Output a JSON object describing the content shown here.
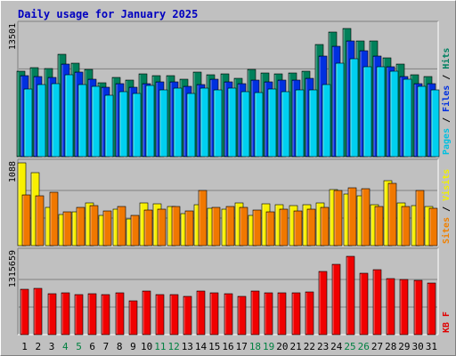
{
  "chart_data": {
    "type": "bar",
    "title": "Daily usage for January 2025",
    "categories": [
      "1",
      "2",
      "3",
      "4",
      "5",
      "6",
      "7",
      "8",
      "9",
      "10",
      "11",
      "12",
      "13",
      "14",
      "15",
      "16",
      "17",
      "18",
      "19",
      "20",
      "21",
      "22",
      "23",
      "24",
      "25",
      "26",
      "27",
      "28",
      "29",
      "30",
      "31"
    ],
    "weekend_days": [
      "4",
      "5",
      "11",
      "12",
      "18",
      "19",
      "25",
      "26"
    ],
    "panels": [
      {
        "id": "hits-files-pages",
        "ylabel_parts": [
          {
            "text": "Pages",
            "color": "#00c0e0"
          },
          {
            "text": " / ",
            "color": "#000000"
          },
          {
            "text": "Files",
            "color": "#0030e0"
          },
          {
            "text": " / ",
            "color": "#000000"
          },
          {
            "text": "Hits",
            "color": "#008060"
          }
        ],
        "max_label": "13501",
        "ylim": [
          0,
          13501
        ],
        "series": [
          {
            "name": "Hits",
            "color": "#00805a",
            "values": [
              8800,
              9100,
              9000,
              10500,
              9600,
              8900,
              7600,
              8100,
              7800,
              8500,
              8300,
              8300,
              7900,
              8700,
              8400,
              8500,
              8000,
              8900,
              8600,
              8500,
              8600,
              8800,
              11500,
              12800,
              13100,
              11900,
              11900,
              10100,
              9500,
              8400,
              8200
            ]
          },
          {
            "name": "Files",
            "color": "#0030e0",
            "values": [
              8300,
              8200,
              8100,
              9500,
              8700,
              7900,
              7100,
              7500,
              7100,
              7500,
              7700,
              7700,
              7200,
              7400,
              7900,
              7700,
              7500,
              7800,
              7700,
              7800,
              7800,
              8000,
              10300,
              11300,
              11900,
              10900,
              10300,
              9200,
              8200,
              7500,
              7500
            ]
          },
          {
            "name": "Pages",
            "color": "#00d0f0",
            "values": [
              6900,
              7400,
              7500,
              8400,
              7400,
              7200,
              6300,
              6700,
              6500,
              7300,
              6800,
              7000,
              6500,
              7000,
              6800,
              7000,
              6700,
              6600,
              6900,
              6700,
              6800,
              6800,
              7400,
              9600,
              10000,
              9200,
              9200,
              8800,
              7900,
              7200,
              6800
            ]
          }
        ]
      },
      {
        "id": "visits-sites",
        "ylabel_parts": [
          {
            "text": "Sites",
            "color": "#f08000"
          },
          {
            "text": " / ",
            "color": "#000000"
          },
          {
            "text": "Visits",
            "color": "#f0f000"
          }
        ],
        "max_label": "1088",
        "ylim": [
          0,
          1088
        ],
        "series": [
          {
            "name": "Visits",
            "color": "#f8f000",
            "values": [
              1088,
              960,
              500,
              410,
              450,
              560,
              400,
              480,
              350,
              560,
              550,
              520,
              420,
              540,
              490,
              480,
              560,
              400,
              550,
              540,
              530,
              540,
              560,
              740,
              680,
              650,
              540,
              850,
              560,
              530,
              510
            ]
          },
          {
            "name": "Sites",
            "color": "#f07800",
            "values": [
              670,
              650,
              700,
              450,
              500,
              530,
              460,
              520,
              400,
              470,
              480,
              520,
              460,
              730,
              500,
              520,
              500,
              470,
              450,
              480,
              460,
              480,
              500,
              720,
              760,
              750,
              510,
              820,
              520,
              720,
              490
            ]
          }
        ]
      },
      {
        "id": "kbytes",
        "ylabel_parts": [
          {
            "text": "KB F",
            "color": "#e00000"
          }
        ],
        "max_label": "1315659",
        "ylim": [
          0,
          1315659
        ],
        "series": [
          {
            "name": "KB F",
            "color": "#f00000",
            "values": [
              720000,
              740000,
              650000,
              660000,
              640000,
              650000,
              630000,
              670000,
              540000,
              690000,
              640000,
              640000,
              610000,
              690000,
              660000,
              650000,
              610000,
              700000,
              660000,
              660000,
              660000,
              680000,
              1000000,
              1120000,
              1240000,
              980000,
              1030000,
              890000,
              880000,
              860000,
              820000
            ]
          }
        ]
      }
    ]
  }
}
